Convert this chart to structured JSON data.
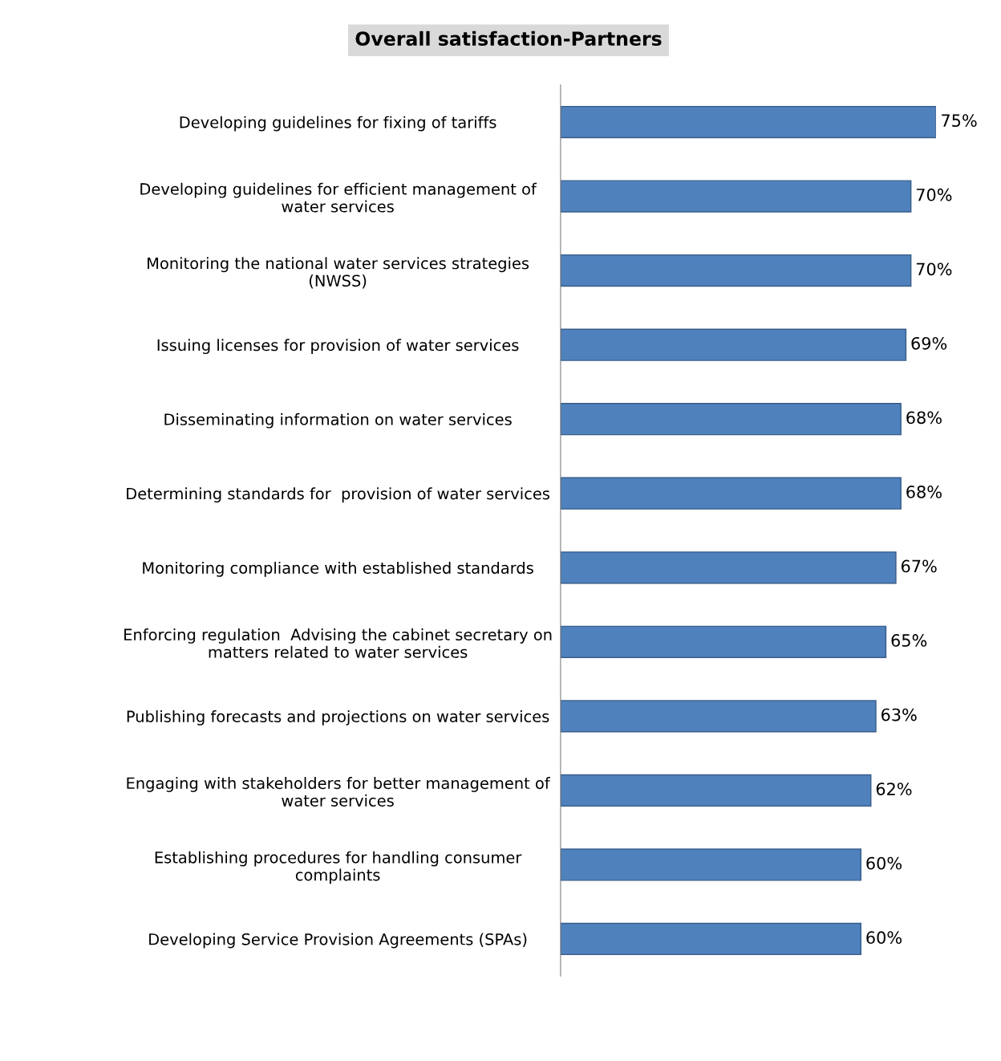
{
  "chart_data": {
    "type": "bar",
    "orientation": "horizontal",
    "title": "Overall satisfaction-Partners",
    "categories": [
      "Developing guidelines for fixing of tariffs",
      "Developing guidelines for efficient management of\nwater services",
      "Monitoring the national water services strategies\n(NWSS)",
      "Issuing licenses for provision of water services",
      "Disseminating information on water services",
      "Determining standards for  provision of water services",
      "Monitoring compliance with established standards",
      "Enforcing regulation  Advising the cabinet secretary on\nmatters related to water services",
      "Publishing forecasts and projections on water services",
      "Engaging with stakeholders for better management of\nwater services",
      "Establishing procedures for handling consumer\ncomplaints",
      "Developing Service Provision Agreements (SPAs)"
    ],
    "values": [
      75,
      70,
      70,
      69,
      68,
      68,
      67,
      65,
      63,
      62,
      60,
      60
    ],
    "value_labels": [
      "75%",
      "70%",
      "70%",
      "69%",
      "68%",
      "68%",
      "67%",
      "65%",
      "63%",
      "62%",
      "60%",
      "60%"
    ],
    "color": "#4f81bd",
    "grid": false,
    "legend": false
  }
}
